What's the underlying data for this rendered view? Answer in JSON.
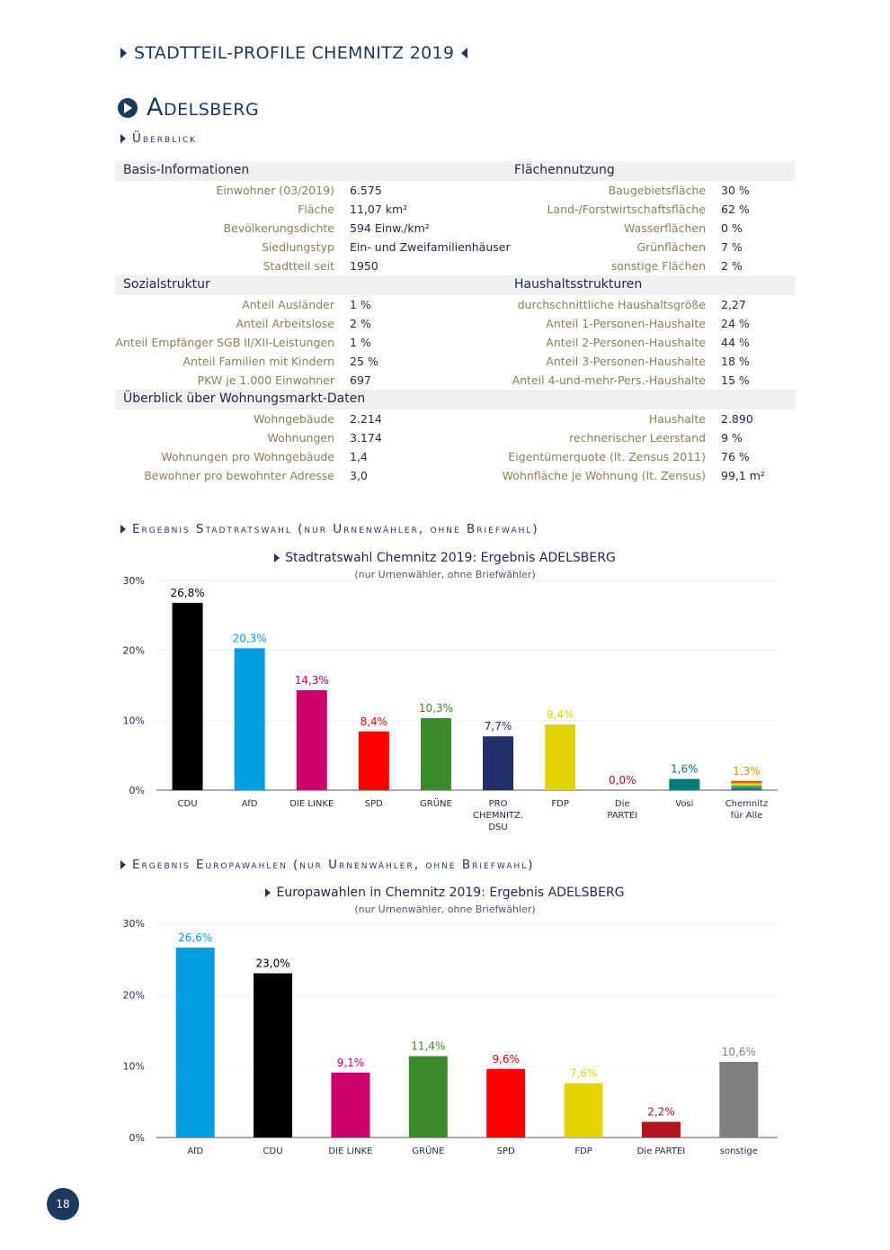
{
  "header": {
    "title": "STADTTEIL-PROFILE CHEMNITZ 2019"
  },
  "district": {
    "name": "Adelsberg"
  },
  "overview_heading": "Überblick",
  "sections": [
    {
      "left_title": "Basis-Informationen",
      "right_title": "Flächennutzung",
      "rows": [
        {
          "label1": "Einwohner (03/2019)",
          "value1": "6.575",
          "label2": "Baugebietsfläche",
          "value2": "30 %"
        },
        {
          "label1": "Fläche",
          "value1": "11,07 km²",
          "label2": "Land-/Forstwirtschaftsfläche",
          "value2": "62 %"
        },
        {
          "label1": "Bevölkerungsdichte",
          "value1": "594 Einw./km²",
          "label2": "Wasserflächen",
          "value2": "0 %"
        },
        {
          "label1": "Siedlungstyp",
          "value1": "Ein- und Zweifamilienhäuser",
          "label2": "Grünflächen",
          "value2": "7 %"
        },
        {
          "label1": "Stadtteil seit",
          "value1": "1950",
          "label2": "sonstige Flächen",
          "value2": "2 %"
        }
      ]
    },
    {
      "left_title": "Sozialstruktur",
      "right_title": "Haushaltsstrukturen",
      "rows": [
        {
          "label1": "Anteil Ausländer",
          "value1": "1 %",
          "label2": "durchschnittliche Haushaltsgröße",
          "value2": "2,27"
        },
        {
          "label1": "Anteil Arbeitslose",
          "value1": "2 %",
          "label2": "Anteil 1-Personen-Haushalte",
          "value2": "24 %"
        },
        {
          "label1": "Anteil Empfänger SGB II/XII-Leistungen",
          "value1": "1 %",
          "label2": "Anteil 2-Personen-Haushalte",
          "value2": "44 %"
        },
        {
          "label1": "Anteil Familien mit Kindern",
          "value1": "25 %",
          "label2": "Anteil 3-Personen-Haushalte",
          "value2": "18 %"
        },
        {
          "label1": "PKW je 1.000 Einwohner",
          "value1": "697",
          "label2": "Anteil 4-und-mehr-Pers.-Haushalte",
          "value2": "15 %"
        }
      ]
    },
    {
      "left_title": "Überblick über Wohnungsmarkt-Daten",
      "right_title": "",
      "rows": [
        {
          "label1": "Wohngebäude",
          "value1": "2.214",
          "label2": "Haushalte",
          "value2": "2.890"
        },
        {
          "label1": "Wohnungen",
          "value1": "3.174",
          "label2": "rechnerischer Leerstand",
          "value2": "9 %"
        },
        {
          "label1": "Wohnungen pro Wohngebäude",
          "value1": "1,4",
          "label2": "Eigentümerquote (lt. Zensus 2011)",
          "value2": "76 %"
        },
        {
          "label1": "Bewohner pro bewohnter Adresse",
          "value1": "3,0",
          "label2": "Wohnfläche je Wohnung (lt. Zensus)",
          "value2": "99,1 m²"
        }
      ]
    }
  ],
  "section_stadtrat": "Ergebnis Stadtratswahl (nur Urnenwähler, ohne Briefwahl)",
  "section_europa": "Ergebnis Europawahlen (nur Urnenwähler, ohne Briefwahl)",
  "chart_data": [
    {
      "type": "bar",
      "title": "Stadtratswahl Chemnitz 2019: Ergebnis ADELSBERG",
      "subtitle": "(nur Urnenwähler, ohne Briefwähler)",
      "categories": [
        "CDU",
        "AfD",
        "DIE LINKE",
        "SPD",
        "GRÜNE",
        "PRO CHEMNITZ. DSU",
        "FDP",
        "Die PARTEI",
        "Vosi",
        "Chemnitz für Alle"
      ],
      "category_lines": [
        [
          "CDU"
        ],
        [
          "AfD"
        ],
        [
          "DIE LINKE"
        ],
        [
          "SPD"
        ],
        [
          "GRÜNE"
        ],
        [
          "PRO",
          "CHEMNITZ.",
          "DSU"
        ],
        [
          "FDP"
        ],
        [
          "Die",
          "PARTEI"
        ],
        [
          "Vosi"
        ],
        [
          "Chemnitz",
          "für Alle"
        ]
      ],
      "values": [
        26.8,
        20.3,
        14.3,
        8.4,
        10.3,
        7.7,
        9.4,
        0.0,
        1.6,
        1.3
      ],
      "value_labels": [
        "26,8%",
        "20,3%",
        "14,3%",
        "8,4%",
        "10,3%",
        "7,7%",
        "9,4%",
        "0,0%",
        "1,6%",
        "1,3%"
      ],
      "colors": [
        "#000000",
        "#009ee0",
        "#cc0066",
        "#ff0000",
        "#3a8c2a",
        "#21306b",
        "#e1d400",
        "#b5121b",
        "#007a7a",
        "rainbow"
      ],
      "label_colors": [
        "#000000",
        "#009ee0",
        "#cc0066",
        "#ff0000",
        "#3a8c2a",
        "#21306b",
        "#e1d400",
        "#b5121b",
        "#007a7a",
        "#f28c00"
      ],
      "yticks": [
        "0%",
        "10%",
        "20%",
        "30%"
      ],
      "ylim": [
        0,
        30
      ]
    },
    {
      "type": "bar",
      "title": "Europawahlen in Chemnitz 2019: Ergebnis ADELSBERG",
      "subtitle": "(nur Urnenwähler, ohne Briefwähler)",
      "categories": [
        "AfD",
        "CDU",
        "DIE LINKE",
        "GRÜNE",
        "SPD",
        "FDP",
        "Die PARTEI",
        "sonstige"
      ],
      "category_lines": [
        [
          "AfD"
        ],
        [
          "CDU"
        ],
        [
          "DIE LINKE"
        ],
        [
          "GRÜNE"
        ],
        [
          "SPD"
        ],
        [
          "FDP"
        ],
        [
          "Die PARTEI"
        ],
        [
          "sonstige"
        ]
      ],
      "values": [
        26.6,
        23.0,
        9.1,
        11.4,
        9.6,
        7.6,
        2.2,
        10.6
      ],
      "value_labels": [
        "26,6%",
        "23,0%",
        "9,1%",
        "11,4%",
        "9,6%",
        "7,6%",
        "2,2%",
        "10,6%"
      ],
      "colors": [
        "#009ee0",
        "#000000",
        "#cc0066",
        "#3a8c2a",
        "#ff0000",
        "#e1d400",
        "#b5121b",
        "#808080"
      ],
      "label_colors": [
        "#009ee0",
        "#000000",
        "#cc0066",
        "#3a8c2a",
        "#ff0000",
        "#e1d400",
        "#b5121b",
        "#808080"
      ],
      "yticks": [
        "0%",
        "10%",
        "20%",
        "30%"
      ],
      "ylim": [
        0,
        30
      ]
    }
  ],
  "page_number": "18"
}
